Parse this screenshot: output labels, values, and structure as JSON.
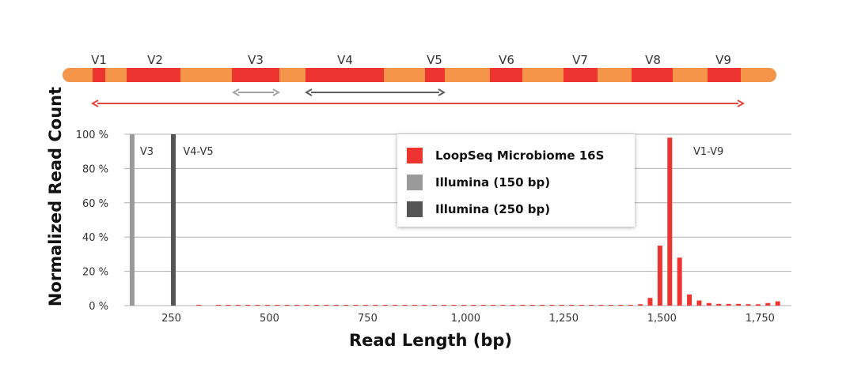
{
  "colors": {
    "gene_bar": "#f5954a",
    "region": "#ee3430",
    "arrow_full": "#e8453a",
    "arrow_v3": "#a3a3a3",
    "arrow_v4v5": "#5f5f5f",
    "loopseq": "#ee3430",
    "illumina150": "#9a9a9a",
    "illumina250": "#555555",
    "grid": "#b0b0b0"
  },
  "regions": [
    "V1",
    "V2",
    "V3",
    "V4",
    "V5",
    "V6",
    "V7",
    "V8",
    "V9"
  ],
  "chart_data": {
    "type": "bar",
    "xlabel": "Read Length (bp)",
    "ylabel": "Normalized Read Count",
    "xlim": [
      130,
      1830
    ],
    "ylim": [
      0,
      100
    ],
    "x_ticks": [
      250,
      500,
      750,
      1000,
      1250,
      1500,
      1750
    ],
    "x_tick_labels": [
      "250",
      "500",
      "750",
      "1,000",
      "1,250",
      "1,500",
      "1,750"
    ],
    "y_ticks": [
      0,
      20,
      40,
      60,
      80,
      100
    ],
    "y_tick_labels": [
      "0 %",
      "20 %",
      "40 %",
      "60 %",
      "80 %",
      "100 %"
    ],
    "grid": true,
    "legend_position": "top-center",
    "series": [
      {
        "name": "LoopSeq Microbiome 16S",
        "x": [
          320,
          370,
          395,
          420,
          445,
          470,
          495,
          520,
          545,
          570,
          595,
          620,
          645,
          670,
          695,
          720,
          745,
          770,
          795,
          820,
          845,
          870,
          895,
          920,
          945,
          970,
          995,
          1020,
          1045,
          1070,
          1095,
          1120,
          1145,
          1170,
          1195,
          1220,
          1245,
          1270,
          1295,
          1320,
          1345,
          1370,
          1395,
          1420,
          1445,
          1470,
          1495,
          1520,
          1545,
          1570,
          1595,
          1620,
          1645,
          1670,
          1695,
          1720,
          1745,
          1770,
          1795
        ],
        "values": [
          0.2,
          0.2,
          0.2,
          0.2,
          0.2,
          0.2,
          0.2,
          0.2,
          0.2,
          0.2,
          0.2,
          0.2,
          0.2,
          0.2,
          0.2,
          0.2,
          0.2,
          0.2,
          0.2,
          0.2,
          0.2,
          0.2,
          0.2,
          0.2,
          0.2,
          0.2,
          0.2,
          0.2,
          0.2,
          0.2,
          0.2,
          0.2,
          0.2,
          0.2,
          0.2,
          0.2,
          0.2,
          0.2,
          0.2,
          0.2,
          0.2,
          0.2,
          0.2,
          0.5,
          0.8,
          4.5,
          35,
          98,
          28,
          6.5,
          3,
          1.5,
          1,
          1,
          1,
          0.8,
          0.8,
          1.5,
          2.5
        ]
      },
      {
        "name": "Illumina (150 bp)",
        "x": [
          150
        ],
        "values": [
          100
        ]
      },
      {
        "name": "Illumina (250 bp)",
        "x": [
          255
        ],
        "values": [
          100
        ]
      }
    ],
    "annotations": [
      {
        "text": "V3",
        "x": 170
      },
      {
        "text": "V4-V5",
        "x": 280
      },
      {
        "text": "V1-V9",
        "x": 1580
      }
    ]
  }
}
